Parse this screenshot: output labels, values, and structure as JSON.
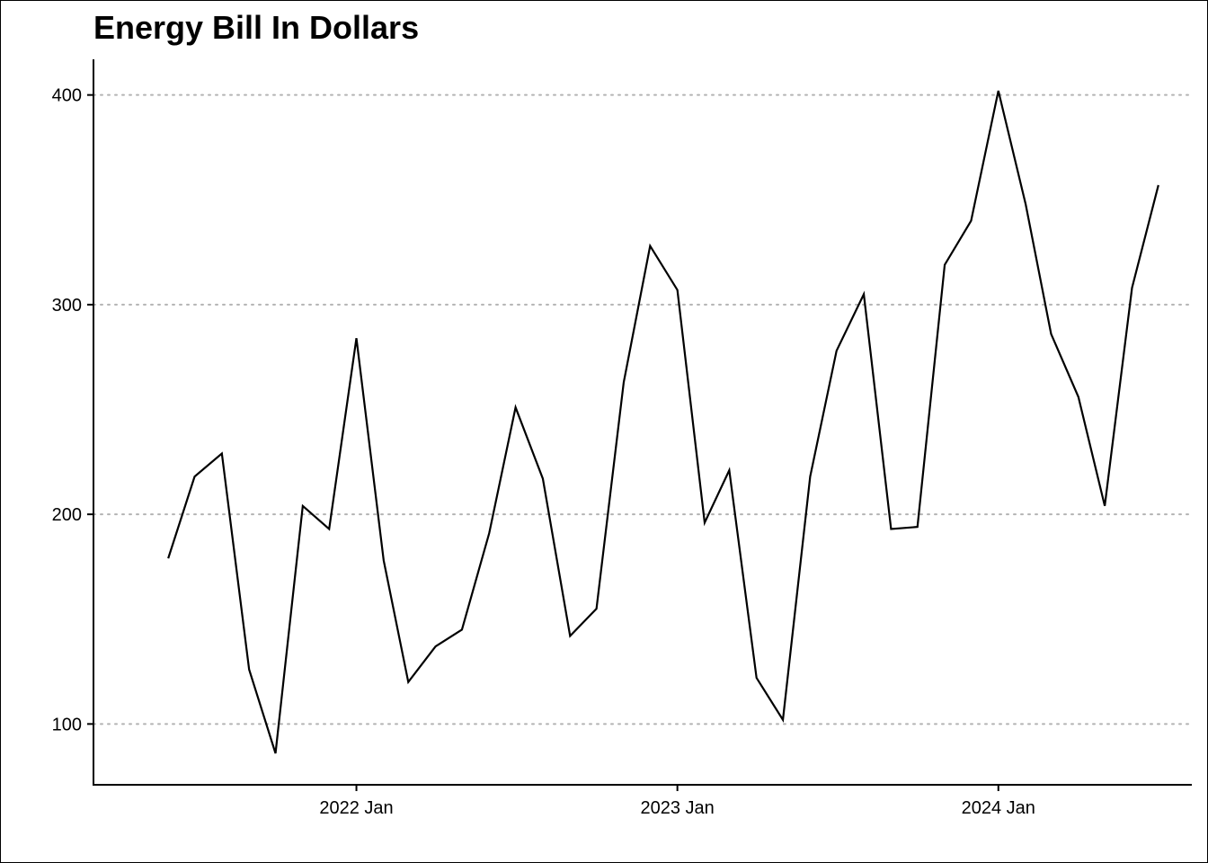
{
  "chart_data": {
    "type": "line",
    "title": "Energy Bill In Dollars",
    "xlabel": "",
    "ylabel": "",
    "grid": {
      "horizontal": true,
      "vertical": false,
      "style": "dotted"
    },
    "legend": "none",
    "ylim": [
      71,
      417
    ],
    "xlim": [
      "2021-03-08",
      "2024-08-08"
    ],
    "y_ticks": [
      {
        "value": 100,
        "label": "100"
      },
      {
        "value": 200,
        "label": "200"
      },
      {
        "value": 300,
        "label": "300"
      },
      {
        "value": 400,
        "label": "400"
      }
    ],
    "x_ticks": [
      {
        "value": "2022-01-01",
        "label": "2022 Jan"
      },
      {
        "value": "2023-01-01",
        "label": "2023 Jan"
      },
      {
        "value": "2024-01-01",
        "label": "2024 Jan"
      }
    ],
    "series": [
      {
        "color": "#000000",
        "points": [
          {
            "x": "2021-06-01",
            "y": 179
          },
          {
            "x": "2021-07-01",
            "y": 218
          },
          {
            "x": "2021-08-01",
            "y": 229
          },
          {
            "x": "2021-09-01",
            "y": 126
          },
          {
            "x": "2021-10-01",
            "y": 86
          },
          {
            "x": "2021-11-01",
            "y": 204
          },
          {
            "x": "2021-12-01",
            "y": 193
          },
          {
            "x": "2022-01-01",
            "y": 284
          },
          {
            "x": "2022-02-01",
            "y": 178
          },
          {
            "x": "2022-03-01",
            "y": 120
          },
          {
            "x": "2022-04-01",
            "y": 137
          },
          {
            "x": "2022-05-01",
            "y": 145
          },
          {
            "x": "2022-06-01",
            "y": 191
          },
          {
            "x": "2022-07-01",
            "y": 251
          },
          {
            "x": "2022-08-01",
            "y": 217
          },
          {
            "x": "2022-09-01",
            "y": 142
          },
          {
            "x": "2022-10-01",
            "y": 155
          },
          {
            "x": "2022-11-01",
            "y": 263
          },
          {
            "x": "2022-12-01",
            "y": 328
          },
          {
            "x": "2023-01-01",
            "y": 307
          },
          {
            "x": "2023-02-01",
            "y": 196
          },
          {
            "x": "2023-03-01",
            "y": 221
          },
          {
            "x": "2023-04-01",
            "y": 122
          },
          {
            "x": "2023-05-01",
            "y": 102
          },
          {
            "x": "2023-06-01",
            "y": 218
          },
          {
            "x": "2023-07-01",
            "y": 278
          },
          {
            "x": "2023-08-01",
            "y": 305
          },
          {
            "x": "2023-09-01",
            "y": 193
          },
          {
            "x": "2023-10-01",
            "y": 194
          },
          {
            "x": "2023-11-01",
            "y": 319
          },
          {
            "x": "2023-12-01",
            "y": 340
          },
          {
            "x": "2024-01-01",
            "y": 402
          },
          {
            "x": "2024-02-01",
            "y": 348
          },
          {
            "x": "2024-03-01",
            "y": 286
          },
          {
            "x": "2024-04-01",
            "y": 256
          },
          {
            "x": "2024-05-01",
            "y": 204
          },
          {
            "x": "2024-06-01",
            "y": 308
          },
          {
            "x": "2024-07-01",
            "y": 357
          }
        ]
      }
    ]
  }
}
